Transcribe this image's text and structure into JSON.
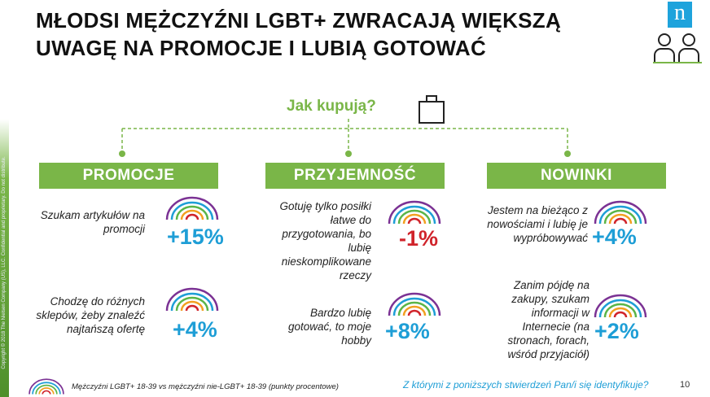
{
  "title": {
    "line1": "MŁODSI MĘŻCZYŹNI LGBT+ ZWRACAJĄ WIĘKSZĄ",
    "line2": "UWAGĘ NA PROMOCJE I LUBIĄ GOTOWAĆ"
  },
  "logo": "n",
  "copyright": "Copyright © 2018 The Nielsen Company (US), LLC. Confidential and proprietary. Do not distribute.",
  "center_label": "Jak kupują?",
  "columns": [
    {
      "header": "PROMOCJE",
      "items": [
        {
          "text": "Szukam artykułów na promocji",
          "value": "+15%"
        },
        {
          "text": "Chodzę do różnych sklepów, żeby znaleźć najtańszą ofertę",
          "value": "+4%"
        }
      ]
    },
    {
      "header": "PRZYJEMNOŚĆ",
      "items": [
        {
          "text": "Gotuję tylko posiłki łatwe do przygotowania, bo lubię nieskomplikowane rzeczy",
          "value": "-1%"
        },
        {
          "text": "Bardzo lubię gotować, to moje hobby",
          "value": "+8%"
        }
      ]
    },
    {
      "header": "NOWINKI",
      "items": [
        {
          "text": "Jestem na bieżąco z nowościami i lubię je wypróbowywać",
          "value": "+4%"
        },
        {
          "text": "Zanim pójdę na zakupy, szukam informacji w Internecie (na stronach, forach, wśród przyjaciół)",
          "value": "+2%"
        }
      ]
    }
  ],
  "footer": {
    "legend": "Mężczyźni LGBT+ 18-39 vs mężczyźni nie-LGBT+ 18-39  (punkty procentowe)",
    "question": "Z którymi z poniższych stwierdzeń Pan/i się identyfikuje?",
    "page": "10"
  },
  "colors": {
    "green": "#7ab648",
    "blue": "#1e9ed6",
    "red": "#d0242b"
  }
}
